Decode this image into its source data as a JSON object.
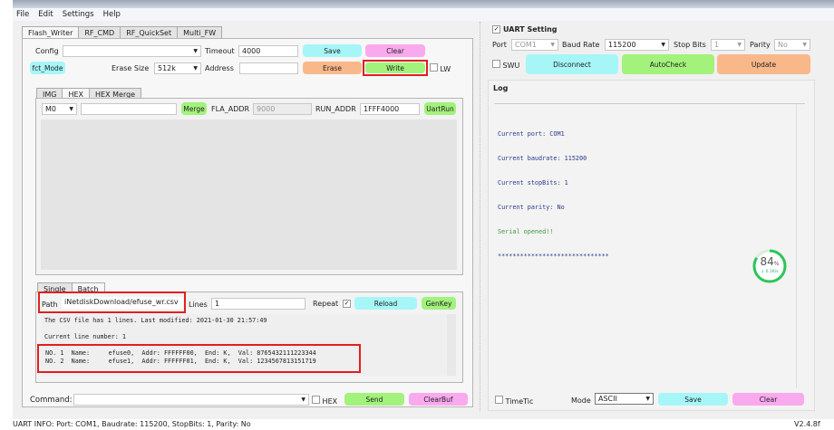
{
  "menu": [
    "File",
    "Edit",
    "Settings",
    "Help"
  ],
  "tabs": [
    "Flash_Writer",
    "RF_CMD",
    "RF_QuickSet",
    "Multi_FW"
  ],
  "flash": {
    "config_label": "Config",
    "config_value": "",
    "timeout_label": "Timeout",
    "timeout_value": "4000",
    "save": "Save",
    "clear": "Clear",
    "fct_mode": "fct_Mode",
    "erase_size_label": "Erase Size",
    "erase_size_value": "512k",
    "address_label": "Address",
    "address_value": "",
    "erase": "Erase",
    "write": "Write",
    "lw": "LW"
  },
  "sub_tabs": [
    "IMG",
    "HEX",
    "HEX Merge"
  ],
  "hex": {
    "mcu": "M0",
    "file": "",
    "merge": "Merge",
    "fla_label": "FLA_ADDR",
    "fla_value": "9000",
    "run_label": "RUN_ADDR",
    "run_value": "1FFF4000",
    "uartrun": "UartRun"
  },
  "batch_tabs": [
    "Single",
    "Batch"
  ],
  "batch": {
    "path_label": "Path",
    "path_value": "iNetdiskDownload/efuse_wr.csv",
    "lines_label": "Lines",
    "lines_value": "1",
    "repeat_label": "Repeat",
    "repeat_checked": true,
    "reload": "Reload",
    "genkey": "GenKey",
    "output": [
      "The CSV file has 1 lines. Last modified: 2021-01-30 21:57:49",
      "",
      "Current line number: 1"
    ],
    "rows": [
      "NO. 1  Name:     efuse0,  Addr: FFFFFF00,  End: K,  Val: 8765432111223344",
      "NO. 2  Name:     efuse1,  Addr: FFFFFF01,  End: K,  Val: 1234567813151719"
    ]
  },
  "command": {
    "label": "Command:",
    "value": "",
    "hex": "HEX",
    "send": "Send",
    "clearbuf": "ClearBuf"
  },
  "uart": {
    "title": "UART Setting",
    "checked": true,
    "port_label": "Port",
    "port": "COM1",
    "baud_label": "Baud Rate",
    "baud": "115200",
    "stop_label": "Stop Bits",
    "stop": "1",
    "parity_label": "Parity",
    "parity": "No",
    "swu": "SWU",
    "disconnect": "Disconnect",
    "autocheck": "AutoCheck",
    "update": "Update"
  },
  "log": {
    "title": "Log",
    "lines": [
      "Current port: COM1",
      "Current baudrate: 115200",
      "Current stopBits: 1",
      "Current parity: No"
    ],
    "opened": "Serial opened!!",
    "stars": "******************************",
    "timetic": "TimeTic",
    "mode_label": "Mode",
    "mode": "ASCII",
    "save": "Save",
    "clear": "Clear"
  },
  "gauge": {
    "percent": 84,
    "percent_text": "84",
    "unit": "%",
    "rate": "↓ 0.1K/s",
    "color": "#2ec45a"
  },
  "status": {
    "info": "UART INFO: Port: COM1, Baudrate: 115200, StopBits: 1, Parity: No",
    "version": "V2.4.8f"
  }
}
